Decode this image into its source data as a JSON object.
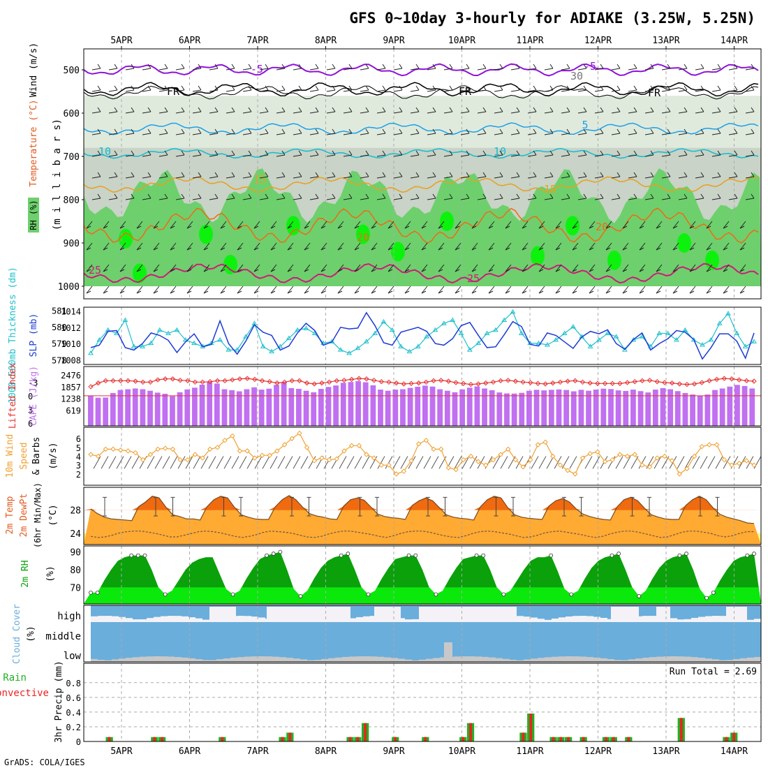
{
  "title": "GFS 0~10day 3-hourly for ADIAKE (3.25W, 5.25N)",
  "credit": "GrADS: COLA/IGES",
  "colors": {
    "rh_light": "#dfeadd",
    "rh_mid": "#c9d3c7",
    "rh_green": "#6dd06d",
    "rh_bright": "#0df20d",
    "t_purple": "#9013d8",
    "t_black": "#000000",
    "t_blue": "#1ea0e6",
    "t_cyan": "#11bdd0",
    "t_orange": "#e8a020",
    "t_darkorange": "#f06a14",
    "t_magenta": "#d01a7c",
    "slp": "#1a3ad6",
    "thick": "#1ec0cc",
    "li": "#e83030",
    "cape": "#c070f0",
    "wind": "#f0a030",
    "temp_max": "#f06a10",
    "temp_fill": "#ffaa33",
    "dew_fill": "#f8f878",
    "rh2m_dark": "#0aa10a",
    "rh2m_light": "#0be80b",
    "cloud": "#6aaedc",
    "cloud_gap": "#f4f2f6",
    "cloud_low": "#c8c8c8",
    "rain": "#22b022",
    "conv": "#ee2222"
  },
  "dates": [
    "5APR",
    "6APR",
    "7APR",
    "8APR",
    "9APR",
    "10APR",
    "11APR",
    "12APR",
    "13APR",
    "14APR"
  ],
  "panels": {
    "pressure": {
      "ylabel": "(m i l l i b a r s)",
      "legend_wind": "Wind (m/s)",
      "legend_temp": "Temperature (°C)",
      "legend_rh": "RH (%)",
      "ticks": [
        "500",
        "600",
        "700",
        "800",
        "900",
        "1000"
      ],
      "contour_labels": [
        "-5",
        "-5",
        "FR",
        "FR",
        "FR",
        "5",
        "10",
        "10",
        "15",
        "15",
        "20",
        "20",
        "25",
        "25",
        "30"
      ]
    },
    "slp": {
      "ylabel_left": "1000-500mb Thickness (dm)",
      "ylabel_right": "SLP (mb)",
      "left_ticks": [
        "581",
        "580",
        "579",
        "578"
      ],
      "right_ticks": [
        "1014",
        "1012",
        "1010",
        "1008"
      ]
    },
    "cape": {
      "ylabel_left": "Lifted Index",
      "ylabel_right": "CAPE (J/kg)",
      "left_ticks": [
        "-3",
        "0",
        "3",
        "6"
      ],
      "right_ticks": [
        "2476",
        "1857",
        "1238",
        "619"
      ]
    },
    "wind": {
      "ylabel1": "10m Wind",
      "ylabel2": "Speed",
      "ylabel3": "& Barbs",
      "units": "(m/s)",
      "ticks": [
        "6",
        "5",
        "4",
        "3",
        "2"
      ]
    },
    "temp": {
      "ylabel1": "2m Temp",
      "ylabel2": "2m DewPt",
      "ylabel3": "(6hr Min/Max)",
      "units": "(°C)",
      "ticks": [
        "28",
        "24"
      ]
    },
    "rh2m": {
      "ylabel": "2m RH",
      "units": "(%)",
      "ticks": [
        "90",
        "80",
        "70"
      ]
    },
    "cloud": {
      "ylabel": "Cloud Cover",
      "units": "(%)",
      "ticks": [
        "high",
        "middle",
        "low"
      ]
    },
    "precip": {
      "ylabel1": "Total / Rain",
      "ylabel2": "Convective",
      "ylabel3": "3hr Precip (mm)",
      "ticks": [
        "0.8",
        "0.6",
        "0.4",
        "0.2",
        "0"
      ],
      "run_total": "Run Total = 2.69"
    }
  },
  "chart_data": [
    {
      "type": "line",
      "name": "slp",
      "ylim": [
        1007.6,
        1014.3
      ],
      "values": [
        1009.5,
        1009.8,
        1011.5,
        1011.6,
        1009.5,
        1009.2,
        1010.0,
        1011.3,
        1011.0,
        1010.4,
        1008.9,
        1010.2,
        1011.2,
        1009.6,
        1009.9,
        1012.8,
        1010.0,
        1008.7,
        1010.3,
        1012.3,
        1011.4,
        1011.0,
        1009.2,
        1009.7,
        1011.3,
        1012.5,
        1011.6,
        1009.8,
        1010.2,
        1012.0,
        1011.8,
        1011.9,
        1013.8,
        1012.2,
        1010.1,
        1009.8,
        1011.4,
        1011.7,
        1012.0,
        1011.5,
        1010.0,
        1009.8,
        1010.6,
        1012.2,
        1012.6,
        1011.0,
        1009.5,
        1009.6,
        1011.1,
        1012.7,
        1012.1,
        1009.9,
        1009.7,
        1011.3,
        1011.0,
        1010.2,
        1009.4,
        1010.8,
        1011.5,
        1011.2,
        1011.7,
        1010.0,
        1009.3,
        1010.5,
        1011.3,
        1009.2,
        1010.0,
        1010.6,
        1011.6,
        1011.4,
        1010.5,
        1008.1,
        1009.5,
        1011.2,
        1011.2,
        1010.3,
        1008.2,
        1011.3
      ]
    },
    {
      "type": "line",
      "name": "thickness",
      "ylim": [
        577.8,
        581.1
      ],
      "values": [
        578.4,
        579.2,
        579.8,
        579.6,
        580.4,
        578.8,
        578.8,
        579.0,
        579.8,
        579.6,
        579.8,
        579.2,
        579.0,
        578.8,
        579.0,
        579.2,
        578.6,
        578.6,
        579.4,
        580.2,
        578.8,
        578.5,
        578.8,
        579.3,
        579.8,
        579.9,
        579.6,
        579.0,
        579.1,
        578.6,
        578.4,
        578.7,
        579.1,
        579.6,
        580.3,
        579.8,
        578.8,
        578.5,
        578.8,
        579.4,
        579.8,
        580.2,
        580.4,
        579.6,
        578.6,
        579.0,
        579.6,
        579.8,
        580.4,
        580.9,
        579.6,
        579.0,
        579.0,
        578.9,
        579.2,
        579.6,
        580.0,
        579.4,
        578.8,
        579.2,
        579.6,
        579.4,
        578.6,
        579.2,
        579.4,
        578.8,
        579.6,
        579.6,
        579.2,
        579.8,
        579.2,
        578.9,
        579.2,
        580.2,
        580.8,
        579.6,
        578.8,
        579.1
      ]
    },
    {
      "type": "bar",
      "name": "cape",
      "ylim": [
        0,
        2700
      ],
      "values": [
        1380,
        1270,
        1280,
        1520,
        1680,
        1720,
        1760,
        1720,
        1640,
        1540,
        1480,
        1350,
        1560,
        1710,
        1800,
        1960,
        2100,
        2020,
        1720,
        1670,
        1610,
        1720,
        1820,
        1700,
        1750,
        1950,
        2080,
        1780,
        1740,
        1640,
        1560,
        1740,
        1840,
        1920,
        2060,
        2100,
        2150,
        2090,
        1930,
        1700,
        1640,
        1700,
        1720,
        1790,
        1850,
        1910,
        1860,
        1720,
        1640,
        1560,
        1710,
        1800,
        1870,
        1760,
        1670,
        1550,
        1500,
        1490,
        1530,
        1640,
        1690,
        1660,
        1690,
        1710,
        1680,
        1610,
        1690,
        1640,
        1700,
        1750,
        1730,
        1660,
        1630,
        1700,
        1620,
        1550,
        1700,
        1780,
        1720,
        1620,
        1520,
        1440,
        1380,
        1440,
        1680,
        1760,
        1860,
        1950,
        1890,
        1760
      ]
    },
    {
      "type": "line",
      "name": "lifted_index",
      "ylim": [
        6,
        -5.5
      ],
      "values": [
        -2,
        -2.8,
        -3.3,
        -3.3,
        -3.3,
        -3.3,
        -3.2,
        -3.0,
        -3.0,
        -3.5,
        -3.7,
        -3.7,
        -3.4,
        -3.3,
        -3.0,
        -3.0,
        -3.1,
        -3.3,
        -3.3,
        -3.5,
        -3.7,
        -3.8,
        -3.6,
        -3.3,
        -3.1,
        -2.8,
        -3.0,
        -3.3,
        -3.3,
        -2.8,
        -2.6,
        -2.8,
        -3.0,
        -3.3,
        -3.4,
        -3.6,
        -3.8,
        -3.7,
        -3.4,
        -3.1,
        -3.0,
        -2.8,
        -2.6,
        -2.7,
        -2.8,
        -3.0,
        -3.3,
        -3.4,
        -3.2,
        -2.9,
        -2.7,
        -2.5,
        -2.6,
        -2.8,
        -3.0,
        -3.3,
        -3.4,
        -3.2,
        -3.0,
        -2.9,
        -2.7,
        -2.6,
        -2.8,
        -3.0,
        -3.2,
        -3.3,
        -3.0,
        -2.8,
        -2.7,
        -2.7,
        -2.7,
        -2.7,
        -2.9,
        -3.1,
        -3.3,
        -3.4,
        -3.1,
        -2.9,
        -2.8,
        -2.6,
        -2.5,
        -2.6,
        -2.9,
        -3.3,
        -3.6,
        -3.8,
        -3.7,
        -3.5,
        -3.3,
        -3.2
      ]
    },
    {
      "type": "line",
      "name": "wind10m",
      "ylim": [
        1.2,
        6.8
      ],
      "values": [
        4.2,
        4.0,
        4.8,
        4.8,
        4.7,
        4.6,
        4.4,
        3.6,
        4.2,
        4.8,
        4.9,
        4.8,
        3.6,
        3.6,
        4.2,
        3.8,
        4.8,
        5.0,
        5.8,
        6.3,
        4.6,
        4.6,
        3.8,
        4.1,
        4.1,
        4.6,
        5.3,
        6.0,
        6.6,
        5.0,
        3.5,
        3.8,
        3.6,
        3.7,
        4.6,
        5.2,
        5.2,
        4.2,
        3.8,
        3.0,
        3.0,
        2.0,
        2.3,
        3.5,
        5.4,
        5.8,
        4.8,
        4.8,
        2.7,
        2.5,
        3.6,
        4.0,
        3.4,
        3.0,
        3.6,
        4.2,
        4.8,
        3.6,
        2.8,
        3.6,
        5.3,
        5.6,
        4.0,
        3.0,
        2.4,
        2.0,
        3.8,
        4.3,
        4.5,
        3.4,
        3.6,
        4.2,
        4.0,
        4.2,
        3.0,
        2.8,
        3.8,
        4.0,
        3.5,
        2.0,
        2.6,
        4.0,
        5.1,
        5.3,
        5.3,
        3.6,
        3.0,
        3.2,
        3.5,
        3.0
      ]
    },
    {
      "type": "area",
      "name": "temp2m",
      "ylim": [
        22.8,
        31.2
      ],
      "values": [
        28.2,
        27.4,
        26.8,
        26.5,
        26.4,
        26.3,
        26.2,
        28.6,
        29.4,
        30.4,
        30.1,
        28.5,
        27.2,
        26.9,
        26.5,
        26.5,
        26.3,
        28.6,
        29.8,
        30.4,
        30.1,
        28.5,
        27.2,
        26.8,
        26.5,
        26.4,
        26.4,
        28.6,
        29.8,
        30.5,
        29.8,
        28.5,
        27.4,
        27.0,
        26.8,
        26.5,
        26.4,
        28.7,
        29.8,
        30.1,
        29.7,
        28.5,
        27.3,
        26.9,
        26.7,
        26.6,
        26.4,
        28.8,
        29.6,
        30.1,
        29.6,
        28.4,
        27.2,
        26.8,
        26.6,
        26.5,
        26.3,
        28.6,
        29.8,
        30.4,
        30.1,
        28.4,
        27.2,
        26.8,
        26.6,
        26.5,
        26.4,
        28.7,
        29.6,
        30.0,
        29.4,
        28.2,
        27.3,
        26.9,
        26.6,
        26.4,
        26.3,
        28.6,
        29.8,
        30.2,
        29.6,
        28.3,
        27.2,
        26.8,
        26.5,
        26.4,
        26.4,
        28.8,
        29.8,
        30.4,
        29.8,
        28.4,
        27.3,
        26.8,
        26.5,
        26.2,
        25.8,
        25.7
      ]
    },
    {
      "type": "line",
      "name": "dewpt2m",
      "ylim": [
        22.8,
        31.2
      ],
      "values": [
        23.5,
        23.3,
        23.4,
        23.7,
        24.1,
        24.3,
        24.4,
        24.4,
        24.2,
        24.0,
        23.7,
        23.4,
        23.4,
        23.7,
        24.0,
        24.3,
        24.4,
        24.3,
        24.1,
        23.8,
        23.5,
        23.3,
        23.5,
        23.8,
        24.2,
        24.4,
        24.3,
        24.2,
        24.0,
        23.7,
        23.4,
        23.3,
        23.5,
        23.9,
        24.2,
        24.4,
        24.4,
        24.2,
        24.0,
        23.8,
        23.5,
        23.3,
        23.6,
        24.0,
        24.3,
        24.4,
        24.4,
        24.2,
        23.9,
        23.6,
        23.4,
        23.3,
        23.6,
        24.0,
        24.3,
        24.4,
        24.3,
        24.1,
        23.9,
        23.6,
        23.3,
        23.4,
        23.7,
        24.1,
        24.3,
        24.4,
        24.2,
        24.0,
        23.8,
        23.5,
        23.3,
        23.5,
        23.9,
        24.2,
        24.4,
        24.4,
        24.2,
        23.9,
        23.6,
        23.3,
        23.4,
        23.8,
        24.2,
        24.4,
        24.4,
        24.2,
        24.0,
        23.6,
        23.4,
        23.6,
        24.0,
        24.3,
        24.3
      ]
    },
    {
      "type": "area",
      "name": "rh2m",
      "ylim": [
        63,
        91
      ],
      "values": [
        67,
        67,
        74,
        80,
        85,
        87,
        88,
        88,
        88,
        80,
        70,
        66,
        68,
        74,
        80,
        84,
        86,
        87,
        87,
        78,
        69,
        66,
        68,
        75,
        81,
        86,
        88,
        89,
        90,
        80,
        69,
        65,
        68,
        75,
        81,
        85,
        87,
        88,
        89,
        80,
        70,
        66,
        68,
        75,
        81,
        86,
        87,
        88,
        88,
        80,
        70,
        66,
        68,
        75,
        81,
        86,
        87,
        88,
        88,
        80,
        70,
        66,
        68,
        74,
        80,
        85,
        87,
        87,
        88,
        79,
        69,
        66,
        68,
        75,
        81,
        85,
        87,
        88,
        89,
        80,
        70,
        65,
        68,
        75,
        81,
        85,
        87,
        88,
        89,
        80,
        69,
        64,
        67,
        74,
        80,
        85,
        87,
        88,
        89
      ]
    },
    {
      "type": "bar",
      "name": "precip3hr",
      "ylim": [
        0,
        0.95
      ],
      "categories_note": "bar index counts 3-hourly steps from start",
      "bars": [
        {
          "i": 2,
          "total": 0.06,
          "conv": 0.06
        },
        {
          "i": 8,
          "total": 0.06,
          "conv": 0.06
        },
        {
          "i": 9,
          "total": 0.06,
          "conv": 0.06
        },
        {
          "i": 17,
          "total": 0.06,
          "conv": 0.06
        },
        {
          "i": 25,
          "total": 0.06,
          "conv": 0.06
        },
        {
          "i": 26,
          "total": 0.12,
          "conv": 0.12
        },
        {
          "i": 34,
          "total": 0.06,
          "conv": 0.06
        },
        {
          "i": 35,
          "total": 0.06,
          "conv": 0.06
        },
        {
          "i": 36,
          "total": 0.25,
          "conv": 0.25
        },
        {
          "i": 40,
          "total": 0.06,
          "conv": 0.06
        },
        {
          "i": 44,
          "total": 0.06,
          "conv": 0.06
        },
        {
          "i": 49,
          "total": 0.06,
          "conv": 0.06
        },
        {
          "i": 50,
          "total": 0.25,
          "conv": 0.25
        },
        {
          "i": 57,
          "total": 0.12,
          "conv": 0.12
        },
        {
          "i": 58,
          "total": 0.38,
          "conv": 0.38
        },
        {
          "i": 61,
          "total": 0.06,
          "conv": 0.06
        },
        {
          "i": 62,
          "total": 0.06,
          "conv": 0.06
        },
        {
          "i": 63,
          "total": 0.06,
          "conv": 0.06
        },
        {
          "i": 65,
          "total": 0.06,
          "conv": 0.06
        },
        {
          "i": 68,
          "total": 0.06,
          "conv": 0.06
        },
        {
          "i": 69,
          "total": 0.06,
          "conv": 0.06
        },
        {
          "i": 71,
          "total": 0.06,
          "conv": 0.06
        },
        {
          "i": 78,
          "total": 0.32,
          "conv": 0.32
        },
        {
          "i": 84,
          "total": 0.06,
          "conv": 0.06
        },
        {
          "i": 85,
          "total": 0.12,
          "conv": 0.12
        }
      ]
    }
  ]
}
